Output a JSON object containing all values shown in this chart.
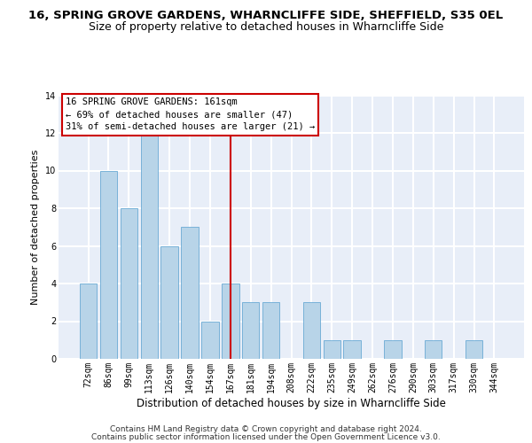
{
  "title1": "16, SPRING GROVE GARDENS, WHARNCLIFFE SIDE, SHEFFIELD, S35 0EL",
  "title2": "Size of property relative to detached houses in Wharncliffe Side",
  "xlabel": "Distribution of detached houses by size in Wharncliffe Side",
  "ylabel": "Number of detached properties",
  "categories": [
    "72sqm",
    "86sqm",
    "99sqm",
    "113sqm",
    "126sqm",
    "140sqm",
    "154sqm",
    "167sqm",
    "181sqm",
    "194sqm",
    "208sqm",
    "222sqm",
    "235sqm",
    "249sqm",
    "262sqm",
    "276sqm",
    "290sqm",
    "303sqm",
    "317sqm",
    "330sqm",
    "344sqm"
  ],
  "values": [
    4,
    10,
    8,
    12,
    6,
    7,
    2,
    4,
    3,
    3,
    0,
    3,
    1,
    1,
    0,
    1,
    0,
    1,
    0,
    1,
    0
  ],
  "bar_color": "#b8d4e8",
  "bar_edgecolor": "#6aaad4",
  "highlight_index": 7,
  "highlight_color": "#cc0000",
  "annotation_line1": "16 SPRING GROVE GARDENS: 161sqm",
  "annotation_line2": "← 69% of detached houses are smaller (47)",
  "annotation_line3": "31% of semi-detached houses are larger (21) →",
  "annotation_box_facecolor": "#ffffff",
  "annotation_box_edgecolor": "#cc0000",
  "ylim": [
    0,
    14
  ],
  "yticks": [
    0,
    2,
    4,
    6,
    8,
    10,
    12,
    14
  ],
  "footer_line1": "Contains HM Land Registry data © Crown copyright and database right 2024.",
  "footer_line2": "Contains public sector information licensed under the Open Government Licence v3.0.",
  "background_color": "#e8eef8",
  "grid_color": "#ffffff",
  "title1_fontsize": 9.5,
  "title2_fontsize": 9,
  "xlabel_fontsize": 8.5,
  "ylabel_fontsize": 8,
  "tick_fontsize": 7,
  "annotation_fontsize": 7.5,
  "footer_fontsize": 6.5
}
